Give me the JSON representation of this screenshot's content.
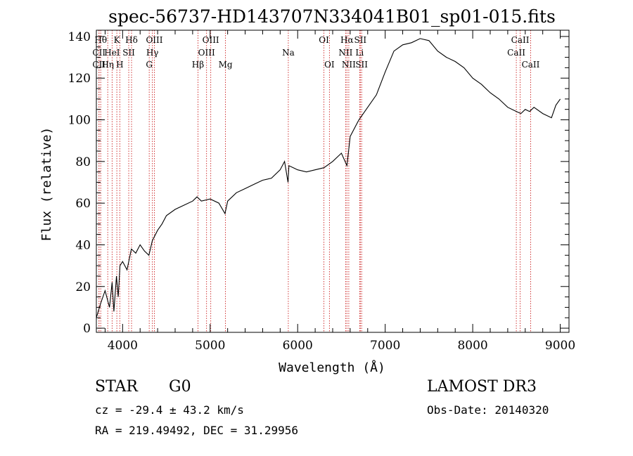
{
  "chart_data": {
    "type": "line",
    "title": "spec-56737-HD143707N334041B01_sp01-015.fits",
    "xlabel": "Wavelength (Å)",
    "ylabel": "Flux (relative)",
    "xlim": [
      3700,
      9100
    ],
    "ylim": [
      -2,
      143
    ],
    "x_ticks": [
      4000,
      5000,
      6000,
      7000,
      8000,
      9000
    ],
    "y_ticks": [
      0,
      20,
      40,
      60,
      80,
      100,
      120,
      140
    ],
    "x_tick_labels": [
      "4000",
      "5000",
      "6000",
      "7000",
      "8000",
      "9000"
    ],
    "y_tick_labels": [
      "0",
      "20",
      "40",
      "60",
      "80",
      "100",
      "120",
      "140"
    ],
    "series": [
      {
        "name": "flux",
        "x": [
          3700,
          3750,
          3800,
          3850,
          3880,
          3900,
          3930,
          3950,
          3970,
          4000,
          4050,
          4100,
          4150,
          4200,
          4250,
          4300,
          4340,
          4400,
          4450,
          4500,
          4600,
          4700,
          4800,
          4850,
          4900,
          5000,
          5100,
          5170,
          5200,
          5300,
          5400,
          5500,
          5600,
          5700,
          5800,
          5850,
          5890,
          5900,
          5950,
          6000,
          6100,
          6200,
          6300,
          6400,
          6500,
          6563,
          6600,
          6700,
          6800,
          6900,
          7000,
          7100,
          7200,
          7300,
          7400,
          7500,
          7600,
          7700,
          7800,
          7900,
          8000,
          8100,
          8200,
          8300,
          8400,
          8500,
          8550,
          8600,
          8650,
          8700,
          8800,
          8900,
          8950,
          9000
        ],
        "y": [
          5,
          12,
          18,
          10,
          22,
          8,
          25,
          15,
          30,
          32,
          28,
          38,
          36,
          40,
          37,
          35,
          42,
          47,
          50,
          54,
          57,
          59,
          61,
          63,
          61,
          62,
          60,
          55,
          61,
          65,
          67,
          69,
          71,
          72,
          76,
          80,
          70,
          78,
          77,
          76,
          75,
          76,
          77,
          80,
          84,
          78,
          92,
          100,
          106,
          112,
          123,
          133,
          136,
          137,
          139,
          138,
          133,
          130,
          128,
          125,
          120,
          117,
          113,
          110,
          106,
          104,
          103,
          105,
          104,
          106,
          103,
          101,
          107,
          110
        ]
      }
    ],
    "line_labels": [
      {
        "wavelength": 3750,
        "row": 1,
        "text": "Hθ"
      },
      {
        "wavelength": 3730,
        "row": 2,
        "text": "CII"
      },
      {
        "wavelength": 3730,
        "row": 3,
        "text": "CII"
      },
      {
        "wavelength": 3830,
        "row": 3,
        "text": "Hη"
      },
      {
        "wavelength": 3934,
        "row": 1,
        "text": "K"
      },
      {
        "wavelength": 3880,
        "row": 2,
        "text": "HeI"
      },
      {
        "wavelength": 3968,
        "row": 3,
        "text": "H"
      },
      {
        "wavelength": 4070,
        "row": 2,
        "text": "SII"
      },
      {
        "wavelength": 4102,
        "row": 1,
        "text": "Hδ"
      },
      {
        "wavelength": 4363,
        "row": 1,
        "text": "OIII"
      },
      {
        "wavelength": 4340,
        "row": 2,
        "text": "Hγ"
      },
      {
        "wavelength": 4304,
        "row": 3,
        "text": "G"
      },
      {
        "wavelength": 4861,
        "row": 3,
        "text": "Hβ"
      },
      {
        "wavelength": 5007,
        "row": 1,
        "text": "OIII"
      },
      {
        "wavelength": 4959,
        "row": 2,
        "text": "OIII"
      },
      {
        "wavelength": 5175,
        "row": 3,
        "text": "Mg"
      },
      {
        "wavelength": 5893,
        "row": 2,
        "text": "Na"
      },
      {
        "wavelength": 6300,
        "row": 1,
        "text": "OI"
      },
      {
        "wavelength": 6363,
        "row": 3,
        "text": "OI"
      },
      {
        "wavelength": 6563,
        "row": 1,
        "text": "Hα"
      },
      {
        "wavelength": 6548,
        "row": 2,
        "text": "NII"
      },
      {
        "wavelength": 6584,
        "row": 3,
        "text": "NII"
      },
      {
        "wavelength": 6716,
        "row": 1,
        "text": "SII"
      },
      {
        "wavelength": 6708,
        "row": 2,
        "text": "Li"
      },
      {
        "wavelength": 6731,
        "row": 3,
        "text": "SII"
      },
      {
        "wavelength": 8542,
        "row": 1,
        "text": "CaII"
      },
      {
        "wavelength": 8498,
        "row": 2,
        "text": "CaII"
      },
      {
        "wavelength": 8662,
        "row": 3,
        "text": "CaII"
      }
    ],
    "grid": false,
    "legend": "none"
  },
  "info": {
    "object_class": "STAR",
    "subclass": "G0",
    "survey": "LAMOST DR3",
    "cz": "cz = -29.4 ± 43.2 km/s",
    "obs_date": "Obs-Date: 20140320",
    "coords": "RA = 219.49492, DEC =  31.29956"
  }
}
